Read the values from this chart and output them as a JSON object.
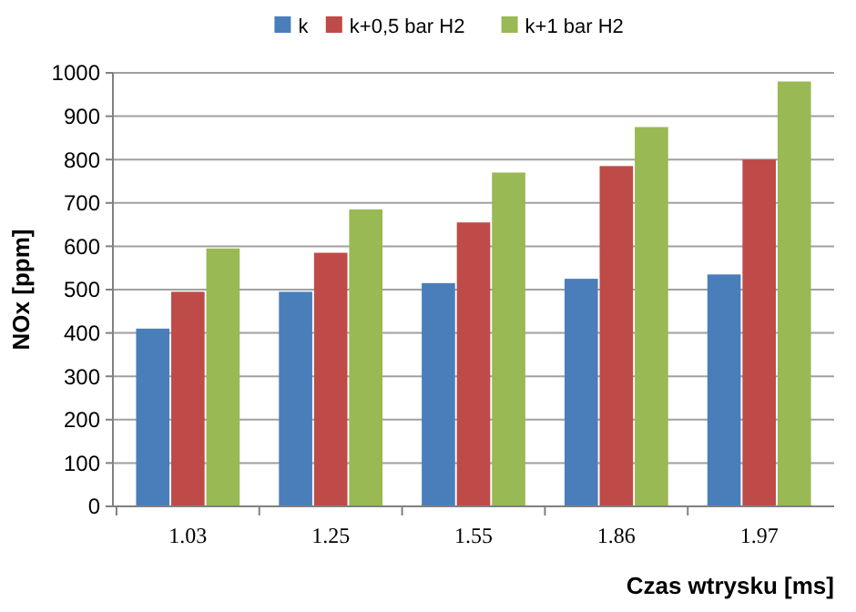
{
  "chart_data": {
    "type": "bar",
    "xlabel": "Czas wtrysku [ms]",
    "ylabel": "NOx [ppm]",
    "categories": [
      "1.03",
      "1.25",
      "1.55",
      "1.86",
      "1.97"
    ],
    "series": [
      {
        "name": "k",
        "color": "#4a7ebb",
        "values": [
          410,
          495,
          515,
          525,
          535
        ]
      },
      {
        "name": "k+0,5 bar H2",
        "color": "#be4b48",
        "values": [
          495,
          585,
          655,
          785,
          800
        ]
      },
      {
        "name": "k+1 bar H2",
        "color": "#98b954",
        "values": [
          595,
          685,
          770,
          875,
          980
        ]
      }
    ],
    "ylim": [
      0,
      1000
    ],
    "yticks": [
      0,
      100,
      200,
      300,
      400,
      500,
      600,
      700,
      800,
      900,
      1000
    ],
    "grid": "y",
    "legend": "top"
  }
}
